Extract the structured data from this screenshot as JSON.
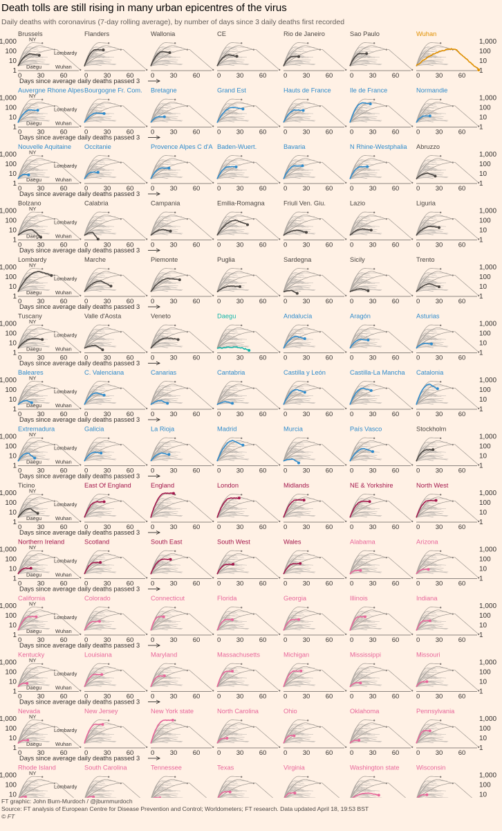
{
  "title": "Death tolls are still rising in many urban epicentres of the virus",
  "subtitle": "Daily deaths with coronavirus (7-day rolling average), by number of days since 3 daily deaths first recorded",
  "footer": {
    "credit": "FT graphic: John Burn-Murdoch / @jburnmurdoch",
    "source": "Source: FT analysis of European Centre for Disease Prevention and Control; Worldometers; FT research. Data updated April 18, 19:53 BST",
    "copyright": "© FT"
  },
  "colors": {
    "background": "#fff1e5",
    "background_lines": "#c2bbb5",
    "grey": "#4a4541",
    "china": "#e09000",
    "france": "#2e8bcc",
    "spain": "#2e8bcc",
    "korea": "#12b5a8",
    "uk": "#a3164b",
    "us": "#e8669a"
  },
  "chart_data": {
    "type": "line",
    "layout": "small-multiples",
    "x_axis": {
      "label": "Days since average daily deaths passed 3",
      "ticks": [
        0,
        30,
        60
      ],
      "range": [
        0,
        80
      ]
    },
    "y_axis": {
      "scale": "log",
      "ticks": [
        1,
        10,
        100,
        1000
      ],
      "tick_labels": [
        "1",
        "10",
        "100",
        "1,000"
      ],
      "range": [
        1,
        2000
      ]
    },
    "reference_labels": [
      "NY",
      "Lombardy",
      "Daegu",
      "Wuhan"
    ],
    "panels": [
      {
        "name": "Brussels",
        "group": "grey",
        "days": 28,
        "peak": 55,
        "end": 40
      },
      {
        "name": "Flanders",
        "group": "grey",
        "days": 25,
        "peak": 150,
        "end": 140
      },
      {
        "name": "Wallonia",
        "group": "grey",
        "days": 25,
        "peak": 90,
        "end": 70
      },
      {
        "name": "CE",
        "group": "grey",
        "days": 26,
        "peak": 45,
        "end": 30
      },
      {
        "name": "Rio de Janeiro",
        "group": "grey",
        "days": 20,
        "peak": 30,
        "end": 30
      },
      {
        "name": "Sao Paulo",
        "group": "grey",
        "days": 22,
        "peak": 60,
        "end": 55
      },
      {
        "name": "Wuhan",
        "group": "china",
        "days": 82,
        "peak": 180,
        "end": 1.3
      },
      {
        "name": "Auvergne Rhone Alpes",
        "group": "france",
        "days": 26,
        "peak": 60,
        "end": 55
      },
      {
        "name": "Bourgogne Fr. Com.",
        "group": "france",
        "days": 26,
        "peak": 28,
        "end": 25
      },
      {
        "name": "Bretagne",
        "group": "france",
        "days": 18,
        "peak": 12,
        "end": 12
      },
      {
        "name": "Grand Est",
        "group": "france",
        "days": 34,
        "peak": 110,
        "end": 80
      },
      {
        "name": "Hauts de France",
        "group": "france",
        "days": 26,
        "peak": 60,
        "end": 55
      },
      {
        "name": "Ile de France",
        "group": "france",
        "days": 27,
        "peak": 320,
        "end": 260
      },
      {
        "name": "Normandie",
        "group": "france",
        "days": 18,
        "peak": 14,
        "end": 14
      },
      {
        "name": "Nouvelle Aquitaine",
        "group": "france",
        "days": 14,
        "peak": 9,
        "end": 8
      },
      {
        "name": "Occitanie",
        "group": "france",
        "days": 18,
        "peak": 16,
        "end": 14
      },
      {
        "name": "Provence Alpes C d'A",
        "group": "france",
        "days": 24,
        "peak": 40,
        "end": 38
      },
      {
        "name": "Baden-Wuert.",
        "group": "france",
        "days": 25,
        "peak": 55,
        "end": 55
      },
      {
        "name": "Bavaria",
        "group": "france",
        "days": 25,
        "peak": 70,
        "end": 65
      },
      {
        "name": "N Rhine-Westphalia",
        "group": "france",
        "days": 23,
        "peak": 55,
        "end": 55
      },
      {
        "name": "Abruzzo",
        "group": "grey",
        "days": 25,
        "peak": 12,
        "end": 6
      },
      {
        "name": "Bolzano",
        "group": "grey",
        "days": 30,
        "peak": 12,
        "end": 2
      },
      {
        "name": "Calabria",
        "group": "grey",
        "days": 18,
        "peak": 6,
        "end": 1.2
      },
      {
        "name": "Campania",
        "group": "grey",
        "days": 26,
        "peak": 12,
        "end": 8
      },
      {
        "name": "Emilia-Romagna",
        "group": "grey",
        "days": 40,
        "peak": 110,
        "end": 40
      },
      {
        "name": "Friuli Ven. Giu.",
        "group": "grey",
        "days": 30,
        "peak": 10,
        "end": 6
      },
      {
        "name": "Lazio",
        "group": "grey",
        "days": 28,
        "peak": 14,
        "end": 10
      },
      {
        "name": "Liguria",
        "group": "grey",
        "days": 30,
        "peak": 25,
        "end": 20
      },
      {
        "name": "Lombardy",
        "group": "grey",
        "days": 44,
        "peak": 380,
        "end": 150
      },
      {
        "name": "Marche",
        "group": "grey",
        "days": 35,
        "peak": 40,
        "end": 12
      },
      {
        "name": "Piemonte",
        "group": "grey",
        "days": 38,
        "peak": 70,
        "end": 55
      },
      {
        "name": "Puglia",
        "group": "grey",
        "days": 30,
        "peak": 12,
        "end": 10
      },
      {
        "name": "Sardegna",
        "group": "grey",
        "days": 18,
        "peak": 4,
        "end": 2
      },
      {
        "name": "Sicily",
        "group": "grey",
        "days": 24,
        "peak": 6,
        "end": 4
      },
      {
        "name": "Trento",
        "group": "grey",
        "days": 30,
        "peak": 20,
        "end": 10
      },
      {
        "name": "Tuscany",
        "group": "grey",
        "days": 32,
        "peak": 30,
        "end": 25
      },
      {
        "name": "Valle d'Aosta",
        "group": "grey",
        "days": 24,
        "peak": 6,
        "end": 2
      },
      {
        "name": "Veneto",
        "group": "grey",
        "days": 36,
        "peak": 35,
        "end": 25
      },
      {
        "name": "Daegu",
        "group": "korea",
        "days": 42,
        "peak": 4,
        "end": 2
      },
      {
        "name": "Andalucía",
        "group": "spain",
        "days": 28,
        "peak": 50,
        "end": 30
      },
      {
        "name": "Aragón",
        "group": "spain",
        "days": 24,
        "peak": 25,
        "end": 20
      },
      {
        "name": "Asturias",
        "group": "spain",
        "days": 20,
        "peak": 10,
        "end": 8
      },
      {
        "name": "Baleares",
        "group": "spain",
        "days": 18,
        "peak": 8,
        "end": 5
      },
      {
        "name": "C. Valenciana",
        "group": "spain",
        "days": 26,
        "peak": 50,
        "end": 30
      },
      {
        "name": "Canarias",
        "group": "spain",
        "days": 22,
        "peak": 8,
        "end": 4
      },
      {
        "name": "Cantabria",
        "group": "spain",
        "days": 20,
        "peak": 6,
        "end": 4
      },
      {
        "name": "Castilla y León",
        "group": "spain",
        "days": 28,
        "peak": 110,
        "end": 60
      },
      {
        "name": "Castilla-La Mancha",
        "group": "spain",
        "days": 28,
        "peak": 150,
        "end": 90
      },
      {
        "name": "Catalonia",
        "group": "spain",
        "days": 28,
        "peak": 400,
        "end": 130
      },
      {
        "name": "Extremadura",
        "group": "spain",
        "days": 22,
        "peak": 20,
        "end": 6
      },
      {
        "name": "Galicia",
        "group": "spain",
        "days": 22,
        "peak": 25,
        "end": 20
      },
      {
        "name": "La Rioja",
        "group": "spain",
        "days": 24,
        "peak": 20,
        "end": 15
      },
      {
        "name": "Madrid",
        "group": "spain",
        "days": 34,
        "peak": 400,
        "end": 130
      },
      {
        "name": "Murcia",
        "group": "spain",
        "days": 20,
        "peak": 5,
        "end": 2
      },
      {
        "name": "País Vasco",
        "group": "spain",
        "days": 30,
        "peak": 60,
        "end": 30
      },
      {
        "name": "Stockholm",
        "group": "grey",
        "days": 22,
        "peak": 45,
        "end": 45
      },
      {
        "name": "Ticino",
        "group": "grey",
        "days": 26,
        "peak": 25,
        "end": 8
      },
      {
        "name": "East Of England",
        "group": "uk",
        "days": 26,
        "peak": 130,
        "end": 130
      },
      {
        "name": "England",
        "group": "uk",
        "days": 30,
        "peak": 1000,
        "end": 1000
      },
      {
        "name": "London",
        "group": "uk",
        "days": 29,
        "peak": 320,
        "end": 300
      },
      {
        "name": "Midlands",
        "group": "uk",
        "days": 27,
        "peak": 200,
        "end": 200
      },
      {
        "name": "NE & Yorkshire",
        "group": "uk",
        "days": 26,
        "peak": 140,
        "end": 140
      },
      {
        "name": "North West",
        "group": "uk",
        "days": 26,
        "peak": 170,
        "end": 170
      },
      {
        "name": "Northern Ireland",
        "group": "uk",
        "days": 17,
        "peak": 12,
        "end": 12
      },
      {
        "name": "Scotland",
        "group": "uk",
        "days": 21,
        "peak": 45,
        "end": 45
      },
      {
        "name": "South East",
        "group": "uk",
        "days": 26,
        "peak": 100,
        "end": 100
      },
      {
        "name": "South West",
        "group": "uk",
        "days": 21,
        "peak": 30,
        "end": 30
      },
      {
        "name": "Wales",
        "group": "uk",
        "days": 22,
        "peak": 35,
        "end": 35
      },
      {
        "name": "Alabama",
        "group": "us",
        "days": 14,
        "peak": 7,
        "end": 7
      },
      {
        "name": "Arizona",
        "group": "us",
        "days": 16,
        "peak": 9,
        "end": 9
      },
      {
        "name": "California",
        "group": "us",
        "days": 24,
        "peak": 80,
        "end": 80
      },
      {
        "name": "Colorado",
        "group": "us",
        "days": 20,
        "peak": 25,
        "end": 25
      },
      {
        "name": "Connecticut",
        "group": "us",
        "days": 17,
        "peak": 80,
        "end": 80
      },
      {
        "name": "Florida",
        "group": "us",
        "days": 20,
        "peak": 40,
        "end": 40
      },
      {
        "name": "Georgia",
        "group": "us",
        "days": 20,
        "peak": 40,
        "end": 40
      },
      {
        "name": "Illinois",
        "group": "us",
        "days": 20,
        "peak": 80,
        "end": 80
      },
      {
        "name": "Indiana",
        "group": "us",
        "days": 18,
        "peak": 30,
        "end": 30
      },
      {
        "name": "Kentucky",
        "group": "us",
        "days": 12,
        "peak": 7,
        "end": 7
      },
      {
        "name": "Louisiana",
        "group": "us",
        "days": 23,
        "peak": 60,
        "end": 55
      },
      {
        "name": "Maryland",
        "group": "us",
        "days": 18,
        "peak": 40,
        "end": 40
      },
      {
        "name": "Massachusetts",
        "group": "us",
        "days": 20,
        "peak": 120,
        "end": 120
      },
      {
        "name": "Michigan",
        "group": "us",
        "days": 23,
        "peak": 130,
        "end": 130
      },
      {
        "name": "Mississippi",
        "group": "us",
        "days": 14,
        "peak": 8,
        "end": 8
      },
      {
        "name": "Missouri",
        "group": "us",
        "days": 14,
        "peak": 10,
        "end": 10
      },
      {
        "name": "Nevada",
        "group": "us",
        "days": 13,
        "peak": 6,
        "end": 6
      },
      {
        "name": "New Jersey",
        "group": "us",
        "days": 24,
        "peak": 280,
        "end": 280
      },
      {
        "name": "New York state",
        "group": "us",
        "days": 29,
        "peak": 750,
        "end": 700
      },
      {
        "name": "North Carolina",
        "group": "us",
        "days": 13,
        "peak": 10,
        "end": 10
      },
      {
        "name": "Ohio",
        "group": "us",
        "days": 14,
        "peak": 18,
        "end": 18
      },
      {
        "name": "Oklahoma",
        "group": "us",
        "days": 12,
        "peak": 6,
        "end": 6
      },
      {
        "name": "Pennsylvania",
        "group": "us",
        "days": 18,
        "peak": 60,
        "end": 60
      },
      {
        "name": "Rhode Island",
        "group": "us",
        "days": 10,
        "peak": 6,
        "end": 6
      },
      {
        "name": "South Carolina",
        "group": "us",
        "days": 12,
        "peak": 6,
        "end": 6
      },
      {
        "name": "Tennessee",
        "group": "us",
        "days": 12,
        "peak": 5,
        "end": 5
      },
      {
        "name": "Texas",
        "group": "us",
        "days": 17,
        "peak": 20,
        "end": 20
      },
      {
        "name": "Virginia",
        "group": "us",
        "days": 15,
        "peak": 15,
        "end": 15
      },
      {
        "name": "Washington state",
        "group": "us",
        "days": 38,
        "peak": 15,
        "end": 9
      },
      {
        "name": "Wisconsin",
        "group": "us",
        "days": 14,
        "peak": 10,
        "end": 10
      }
    ]
  }
}
